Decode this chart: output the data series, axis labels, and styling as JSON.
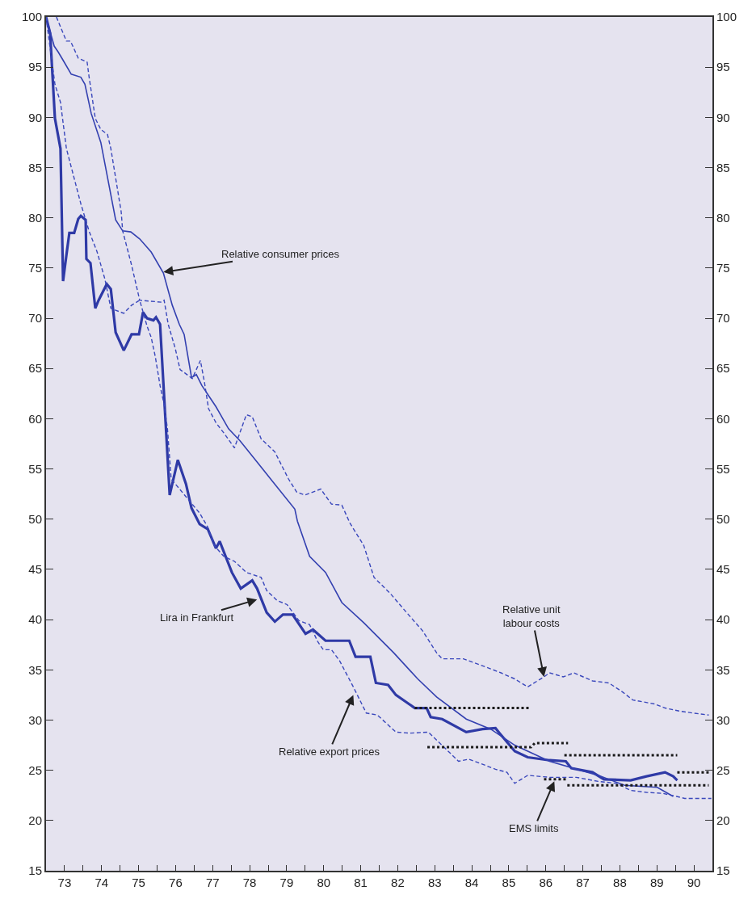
{
  "chart_data": {
    "type": "line",
    "xlim": [
      73,
      91
    ],
    "xticks": [
      {
        "value": 73,
        "label": null
      },
      {
        "value": 73.5,
        "label": "73"
      },
      {
        "value": 74,
        "label": null
      },
      {
        "value": 74.5,
        "label": "74"
      },
      {
        "value": 75,
        "label": null
      },
      {
        "value": 75.5,
        "label": "75"
      },
      {
        "value": 76,
        "label": null
      },
      {
        "value": 76.5,
        "label": "76"
      },
      {
        "value": 77,
        "label": null
      },
      {
        "value": 77.5,
        "label": "77"
      },
      {
        "value": 78,
        "label": null
      },
      {
        "value": 78.5,
        "label": "78"
      },
      {
        "value": 79,
        "label": null
      },
      {
        "value": 79.5,
        "label": "79"
      },
      {
        "value": 80,
        "label": null
      },
      {
        "value": 80.5,
        "label": "80"
      },
      {
        "value": 81,
        "label": null
      },
      {
        "value": 81.5,
        "label": "81"
      },
      {
        "value": 82,
        "label": null
      },
      {
        "value": 82.5,
        "label": "82"
      },
      {
        "value": 83,
        "label": null
      },
      {
        "value": 83.5,
        "label": "83"
      },
      {
        "value": 84,
        "label": null
      },
      {
        "value": 84.5,
        "label": "84"
      },
      {
        "value": 85,
        "label": null
      },
      {
        "value": 85.5,
        "label": "85"
      },
      {
        "value": 86,
        "label": null
      },
      {
        "value": 86.5,
        "label": "86"
      },
      {
        "value": 87,
        "label": null
      },
      {
        "value": 87.5,
        "label": "87"
      },
      {
        "value": 88,
        "label": null
      },
      {
        "value": 88.5,
        "label": "88"
      },
      {
        "value": 89,
        "label": null
      },
      {
        "value": 89.5,
        "label": "89"
      },
      {
        "value": 90,
        "label": null
      },
      {
        "value": 90.5,
        "label": "90"
      },
      {
        "value": 91,
        "label": null
      }
    ],
    "ylim": [
      15,
      100
    ],
    "yticks": [
      15,
      20,
      25,
      30,
      35,
      40,
      45,
      50,
      55,
      60,
      65,
      70,
      75,
      80,
      85,
      90,
      95,
      100
    ],
    "y2lim": [
      15,
      100
    ],
    "y2ticks": [
      15,
      20,
      25,
      30,
      35,
      40,
      45,
      50,
      55,
      60,
      65,
      70,
      75,
      80,
      85,
      90,
      95,
      100
    ],
    "grid": false,
    "marker": "none",
    "series": [
      {
        "color": "#2f3aa6",
        "line_style": "solid",
        "x": [
          73.0,
          73.11,
          73.24,
          73.39,
          73.46,
          73.55,
          73.63,
          73.76,
          73.87,
          73.94,
          74.07,
          74.09,
          74.2,
          74.33,
          74.42,
          74.64,
          74.75,
          74.88,
          75.1,
          75.31,
          75.51,
          75.62,
          75.73,
          75.9,
          75.97,
          76.08,
          76.34,
          76.56,
          76.78,
          76.93,
          77.15,
          77.37,
          77.59,
          77.69,
          78.02,
          78.26,
          78.57,
          78.7,
          78.96,
          79.18,
          79.4,
          79.66,
          80.01,
          80.21,
          80.55,
          81.19,
          81.36,
          81.76,
          81.91,
          82.24,
          82.45,
          82.96,
          83.28,
          83.39,
          83.7,
          84.35,
          84.79,
          85.14,
          85.25,
          85.66,
          86.01,
          86.6,
          87.04,
          87.19,
          87.76,
          88.07,
          88.79,
          89.22,
          89.72,
          89.94,
          90.05
        ],
        "values": [
          100,
          98.4,
          89.9,
          86.9,
          73.7,
          76.3,
          78.5,
          78.5,
          79.9,
          80.2,
          79.8,
          75.9,
          75.5,
          71.0,
          71.8,
          73.4,
          72.9,
          68.6,
          66.8,
          68.4,
          68.4,
          70.6,
          70.0,
          69.8,
          70.1,
          69.4,
          52.4,
          55.9,
          53.5,
          51.1,
          49.5,
          49.0,
          47.1,
          47.8,
          44.7,
          43.1,
          43.9,
          43.1,
          40.7,
          39.8,
          40.5,
          40.5,
          38.6,
          39.0,
          37.9,
          37.9,
          36.3,
          36.3,
          33.7,
          33.5,
          32.5,
          31.2,
          31.2,
          30.3,
          30.1,
          28.8,
          29.1,
          29.2,
          28.7,
          26.9,
          26.3,
          26.0,
          25.9,
          25.2,
          24.8,
          24.1,
          24.0,
          24.4,
          24.8,
          24.4,
          24.0
        ]
      },
      {
        "color": "#3340b0",
        "line_style": "solid",
        "x": [
          73.0,
          73.22,
          73.33,
          73.46,
          73.68,
          73.94,
          74.05,
          74.22,
          74.48,
          74.88,
          75.07,
          75.29,
          75.53,
          75.84,
          76.17,
          76.41,
          76.6,
          76.73,
          76.93,
          77.06,
          77.21,
          77.59,
          77.93,
          78.24,
          78.74,
          79.11,
          79.72,
          79.79,
          80.12,
          80.55,
          80.99,
          81.58,
          82.39,
          83.04,
          83.55,
          84.35,
          85.01,
          85.66,
          86.6,
          87.91,
          88.63,
          89.51,
          89.94
        ],
        "values": [
          100,
          97.1,
          96.5,
          95.7,
          94.3,
          94.0,
          93.3,
          90.4,
          87.5,
          79.8,
          78.7,
          78.6,
          77.9,
          76.6,
          74.5,
          71.3,
          69.4,
          68.4,
          64.1,
          64.4,
          63.3,
          61.2,
          59.0,
          57.8,
          55.5,
          53.8,
          51.0,
          49.8,
          46.3,
          44.7,
          41.7,
          39.7,
          36.7,
          34.1,
          32.3,
          30.1,
          29.1,
          27.5,
          25.9,
          24.5,
          23.5,
          23.3,
          22.4
        ]
      },
      {
        "color": "#3a48bc",
        "line_style": "dashed",
        "x": [
          73.28,
          73.55,
          73.66,
          73.87,
          74.11,
          74.16,
          74.33,
          74.48,
          74.66,
          74.75,
          75.03,
          75.07,
          75.31,
          75.53,
          76.12,
          76.19,
          76.3,
          76.49,
          76.62,
          76.95,
          77.17,
          77.28,
          77.39,
          77.59,
          77.8,
          78.09,
          78.41,
          78.57,
          78.81,
          79.18,
          79.55,
          79.77,
          79.99,
          80.42,
          80.71,
          80.99,
          81.21,
          81.58,
          81.86,
          82.3,
          82.74,
          83.17,
          83.55,
          83.7,
          84.27,
          84.57,
          85.01,
          85.29,
          85.66,
          86.01,
          86.45,
          86.6,
          86.97,
          87.26,
          87.76,
          88.2,
          88.57,
          88.85,
          89.44,
          89.72,
          90.1,
          90.47,
          90.9
        ],
        "values": [
          100,
          97.6,
          97.6,
          95.9,
          95.5,
          94.1,
          89.9,
          88.8,
          88.3,
          86.9,
          80.6,
          78.7,
          75.3,
          71.8,
          71.6,
          71.8,
          69.4,
          67.0,
          64.9,
          64.0,
          65.8,
          63.6,
          61.0,
          59.6,
          58.6,
          57.1,
          60.4,
          60.2,
          58.0,
          56.7,
          54.0,
          52.7,
          52.4,
          53.0,
          51.5,
          51.4,
          49.6,
          47.4,
          44.2,
          42.6,
          40.7,
          38.9,
          36.7,
          36.1,
          36.1,
          35.7,
          35.1,
          34.7,
          34.1,
          33.3,
          34.3,
          34.7,
          34.3,
          34.7,
          33.9,
          33.7,
          32.8,
          32.0,
          31.6,
          31.2,
          30.9,
          30.7,
          30.5
        ]
      },
      {
        "color": "#3a48bc",
        "line_style": "dashed",
        "x": [
          73.0,
          73.24,
          73.39,
          73.55,
          73.72,
          73.94,
          74.16,
          74.38,
          74.59,
          74.75,
          74.88,
          75.1,
          75.31,
          75.53,
          75.73,
          75.84,
          75.95,
          76.08,
          76.19,
          76.28,
          76.38,
          77.15,
          77.37,
          77.54,
          77.8,
          78.09,
          78.41,
          78.81,
          78.96,
          79.24,
          79.51,
          79.83,
          80.12,
          80.34,
          80.49,
          80.71,
          80.93,
          81.3,
          81.65,
          81.95,
          82.45,
          82.83,
          83.33,
          83.55,
          83.92,
          84.14,
          84.42,
          84.79,
          85.14,
          85.45,
          85.66,
          86.01,
          86.6,
          87.32,
          87.91,
          88.41,
          88.79,
          89.22,
          89.66,
          90.03,
          90.25,
          90.97
        ],
        "values": [
          100,
          93.3,
          91.5,
          86.9,
          84.5,
          81.4,
          78.7,
          76.6,
          73.9,
          71.0,
          70.8,
          70.5,
          71.3,
          71.8,
          69.2,
          68.1,
          66.2,
          63.3,
          61.4,
          59.0,
          54.0,
          50.6,
          49.2,
          47.4,
          46.3,
          45.8,
          44.7,
          44.2,
          42.9,
          41.9,
          41.5,
          39.9,
          39.5,
          37.8,
          37.0,
          37.0,
          35.9,
          33.3,
          30.7,
          30.5,
          28.8,
          28.7,
          28.8,
          28.0,
          26.7,
          25.9,
          26.1,
          25.6,
          25.1,
          24.8,
          23.7,
          24.5,
          24.3,
          24.3,
          23.9,
          23.7,
          23.0,
          22.8,
          22.7,
          22.4,
          22.2,
          22.2
        ]
      },
      {
        "color": "#1a1a1a",
        "line_style": "dotted",
        "x": [
          82.96,
          86.06
        ],
        "values": [
          31.2,
          31.2
        ]
      },
      {
        "color": "#1a1a1a",
        "line_style": "dotted",
        "x": [
          83.3,
          86.1,
          86.2,
          87.1
        ],
        "values": [
          27.3,
          27.3,
          27.7,
          27.7
        ]
      },
      {
        "color": "#1a1a1a",
        "line_style": "dotted",
        "x": [
          87.0,
          90.05
        ],
        "values": [
          26.5,
          26.5
        ]
      },
      {
        "color": "#1a1a1a",
        "line_style": "dotted",
        "x": [
          90.05,
          90.9
        ],
        "values": [
          24.8,
          24.8
        ]
      },
      {
        "color": "#1a1a1a",
        "line_style": "dotted",
        "x": [
          86.45,
          87.04
        ],
        "values": [
          24.1,
          24.1
        ]
      },
      {
        "color": "#1a1a1a",
        "line_style": "dotted",
        "x": [
          87.08,
          90.9
        ],
        "values": [
          23.5,
          23.5
        ]
      }
    ],
    "annotations": [
      {
        "text": "Relative consumer prices",
        "x": 76.17,
        "y": 74.6
      },
      {
        "text": "Lira in Frankfurt",
        "x": 78.7,
        "y": 42.0
      },
      {
        "text": "Relative export prices",
        "x": 81.3,
        "y": 32.5
      },
      {
        "text": "Relative unit\nlabour costs",
        "x": 86.45,
        "y": 34.3
      },
      {
        "text": "EMS limits",
        "x": 86.73,
        "y": 23.9
      }
    ]
  }
}
